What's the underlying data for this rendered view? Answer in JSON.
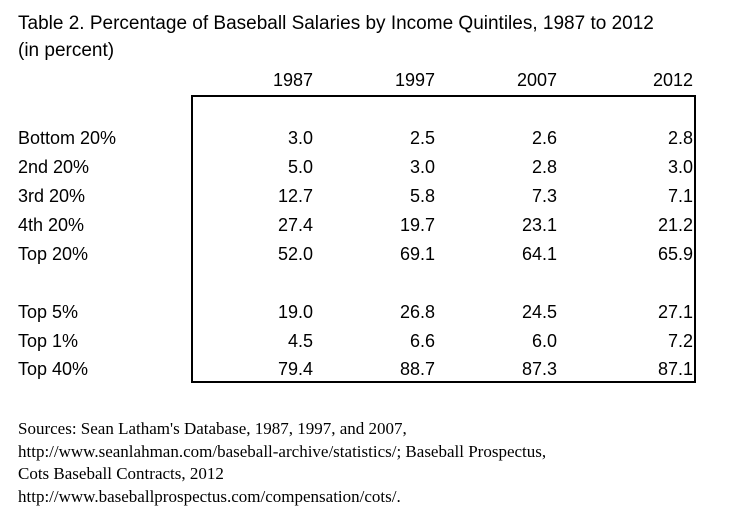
{
  "chart_data": {
    "type": "table",
    "title": "Table 2. Percentage of Baseball Salaries by Income Quintiles, 1987 to 2012",
    "subtitle": "(in percent)",
    "columns": [
      "1987",
      "1997",
      "2007",
      "2012"
    ],
    "rows": [
      {
        "label": "Bottom 20%",
        "values": [
          "3.0",
          "2.5",
          "2.6",
          "2.8"
        ]
      },
      {
        "label": "2nd 20%",
        "values": [
          "5.0",
          "3.0",
          "2.8",
          "3.0"
        ]
      },
      {
        "label": "3rd 20%",
        "values": [
          "12.7",
          "5.8",
          "7.3",
          "7.1"
        ]
      },
      {
        "label": "4th 20%",
        "values": [
          "27.4",
          "19.7",
          "23.1",
          "21.2"
        ]
      },
      {
        "label": "Top 20%",
        "values": [
          "52.0",
          "69.1",
          "64.1",
          "65.9"
        ]
      },
      {
        "label": "Top 5%",
        "values": [
          "19.0",
          "26.8",
          "24.5",
          "27.1"
        ]
      },
      {
        "label": "Top 1%",
        "values": [
          "4.5",
          "6.6",
          "6.0",
          "7.2"
        ]
      },
      {
        "label": "Top 40%",
        "values": [
          "79.4",
          "88.7",
          "87.3",
          "87.1"
        ]
      }
    ]
  },
  "sources": [
    "Sources: Sean Latham's Database, 1987, 1997, and 2007,",
    "http://www.seanlahman.com/baseball-archive/statistics/; Baseball Prospectus,",
    "Cots Baseball Contracts, 2012",
    "http://www.baseballprospectus.com/compensation/cots/."
  ]
}
